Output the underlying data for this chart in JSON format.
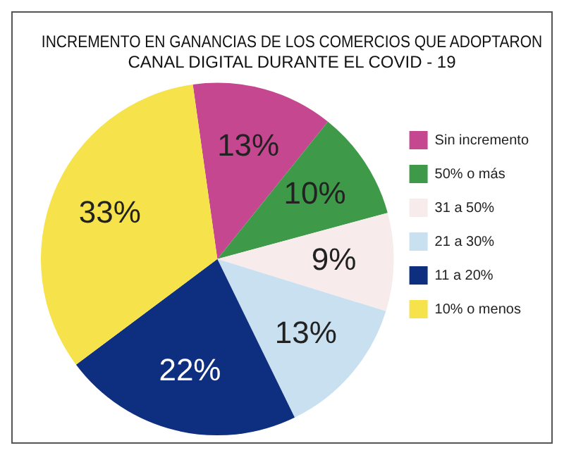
{
  "chart_data": {
    "type": "pie",
    "title": [
      "INCREMENTO EN GANANCIAS DE LOS COMERCIOS QUE ADOPTARON",
      "CANAL DIGITAL DURANTE EL COVID - 19"
    ],
    "categories": [
      "Sin incremento",
      "50% o más",
      "31 a 50%",
      "21 a 30%",
      "11 a 20%",
      "10% o menos"
    ],
    "values": [
      13,
      10,
      9,
      13,
      22,
      33
    ],
    "colors": [
      "#c5478f",
      "#3e9a48",
      "#f7ebeb",
      "#c8e0ef",
      "#0e2f7f",
      "#f6e24a"
    ],
    "value_labels": [
      "13%",
      "10%",
      "9%",
      "13%",
      "22%",
      "33%"
    ],
    "legend": "right"
  }
}
